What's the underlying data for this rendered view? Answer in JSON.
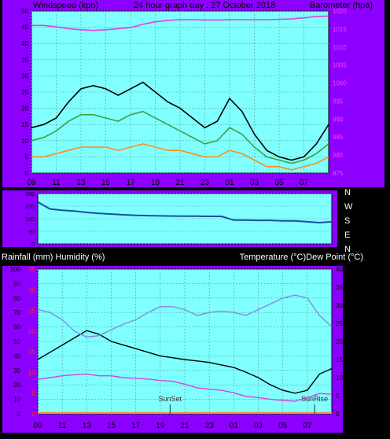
{
  "chart_data": [
    {
      "type": "line",
      "title": "24 hour graph day : 27 October 2018",
      "left_axis_label": "Windspeed (kph)",
      "right_axis_label": "Barometer (hpa)",
      "left_ylim": [
        0,
        50
      ],
      "left_ticks": [
        "0",
        "5",
        "10",
        "15",
        "20",
        "25",
        "30",
        "35",
        "40",
        "45",
        "50"
      ],
      "right_ylim": [
        975,
        1020
      ],
      "right_ticks": [
        "975",
        "980",
        "985",
        "990",
        "995",
        "1000",
        "1005",
        "1010",
        "1015",
        "1020"
      ],
      "x_ticks": [
        "11",
        "13",
        "15",
        "17",
        "19",
        "21",
        "23",
        "01",
        "03",
        "05",
        "07",
        "09"
      ],
      "x": [
        9,
        10,
        11,
        12,
        13,
        14,
        15,
        16,
        17,
        18,
        19,
        20,
        21,
        22,
        23,
        24,
        25,
        26,
        27,
        28,
        29,
        30,
        31,
        32,
        33
      ],
      "series": [
        {
          "color": "#000000",
          "axis": "left",
          "values": [
            14,
            15,
            17,
            22,
            26,
            27,
            26,
            24,
            26,
            28,
            25,
            22,
            20,
            17,
            14,
            16,
            23,
            19,
            12,
            7,
            5,
            4,
            5,
            9,
            15
          ]
        },
        {
          "color": "#40a040",
          "axis": "left",
          "values": [
            10,
            11,
            13,
            16,
            18,
            18,
            17,
            16,
            18,
            19,
            17,
            15,
            13,
            11,
            9,
            10,
            14,
            12,
            8,
            5,
            4,
            3,
            4,
            6,
            9
          ]
        },
        {
          "color": "#ff8c1a",
          "axis": "left",
          "values": [
            5,
            5,
            6,
            7,
            8,
            8,
            8,
            7,
            8,
            9,
            8,
            7,
            7,
            6,
            5,
            5,
            7,
            6,
            4,
            2,
            2,
            1,
            2,
            3,
            5
          ]
        },
        {
          "color": "#e040e0",
          "axis": "right",
          "values": [
            1016,
            1016,
            1015.6,
            1015.1,
            1014.8,
            1014.6,
            1014.8,
            1015.1,
            1015.4,
            1016.3,
            1017,
            1017.4,
            1017.6,
            1017.6,
            1017.5,
            1017.5,
            1017.6,
            1017.6,
            1017.6,
            1017.6,
            1017.7,
            1017.8,
            1018.1,
            1018.5,
            1018.6
          ]
        }
      ]
    },
    {
      "type": "line",
      "title": "",
      "right_labels": [
        "N",
        "W",
        "S",
        "E",
        "N"
      ],
      "ylim": [
        0,
        360
      ],
      "ticks": [
        "0",
        "90",
        "180",
        "270",
        "360"
      ],
      "x": [
        9,
        10,
        11,
        12,
        13,
        14,
        15,
        16,
        17,
        18,
        19,
        20,
        21,
        22,
        23,
        24,
        25,
        26,
        27,
        28,
        29,
        30,
        31,
        32,
        33
      ],
      "series": [
        {
          "color": "#1a4fa0",
          "values": [
            300,
            250,
            240,
            235,
            225,
            218,
            213,
            208,
            204,
            202,
            200,
            199,
            198,
            198,
            197,
            197,
            170,
            170,
            168,
            168,
            165,
            165,
            158,
            152,
            158
          ]
        }
      ]
    },
    {
      "type": "line",
      "title": "",
      "left_axis_label": "Rainfall (mm)  Humidity (%)",
      "right_axis_label": "Temperature (°C)Dew Point (°C)",
      "humidity_ylim": [
        0,
        100
      ],
      "humidity_ticks": [
        "0",
        "10",
        "20",
        "30",
        "40",
        "50",
        "60",
        "70",
        "80",
        "90",
        "100"
      ],
      "rain_ylim": [
        0,
        35
      ],
      "rain_ticks": [
        "0",
        "5",
        "10",
        "15",
        "20",
        "25",
        "30",
        "35"
      ],
      "temp_ylim": [
        0,
        40
      ],
      "temp_ticks": [
        "0",
        "5",
        "10",
        "15",
        "20",
        "25",
        "30",
        "35",
        "40"
      ],
      "x_ticks": [
        "11",
        "13",
        "15",
        "17",
        "19",
        "21",
        "23",
        "01",
        "03",
        "05",
        "07",
        "09"
      ],
      "x": [
        9,
        10,
        11,
        12,
        13,
        14,
        15,
        16,
        17,
        18,
        19,
        20,
        21,
        22,
        23,
        24,
        25,
        26,
        27,
        28,
        29,
        30,
        31,
        32,
        33
      ],
      "series": [
        {
          "color": "#000000",
          "axis": "temp",
          "values": [
            15,
            17,
            19,
            21,
            23,
            22,
            20,
            19,
            18,
            17,
            16,
            15.5,
            15,
            14.6,
            14.2,
            13.5,
            12.8,
            11.5,
            10,
            8,
            6.5,
            5.7,
            6.5,
            11,
            12.5
          ]
        },
        {
          "color": "#e040e0",
          "axis": "temp",
          "values": [
            9.5,
            10,
            10.5,
            10.8,
            11,
            10.5,
            10.5,
            10,
            9.8,
            9.6,
            9.2,
            9,
            8.2,
            7.2,
            6.8,
            6.5,
            5.8,
            4.8,
            4.5,
            4,
            3.7,
            3.5,
            4.5,
            5.6,
            5.4
          ]
        },
        {
          "color": "#8888e0",
          "axis": "humidity",
          "values": [
            72,
            70,
            65,
            57,
            53,
            54,
            58,
            62,
            65,
            70,
            74,
            74,
            72,
            68,
            70,
            71,
            70,
            68,
            72,
            76,
            80,
            82,
            80,
            68,
            60
          ]
        }
      ],
      "annotations": [
        {
          "label": "SunSet",
          "x": 19.8
        },
        {
          "label": "SunRise",
          "x": 31.6
        }
      ]
    }
  ]
}
